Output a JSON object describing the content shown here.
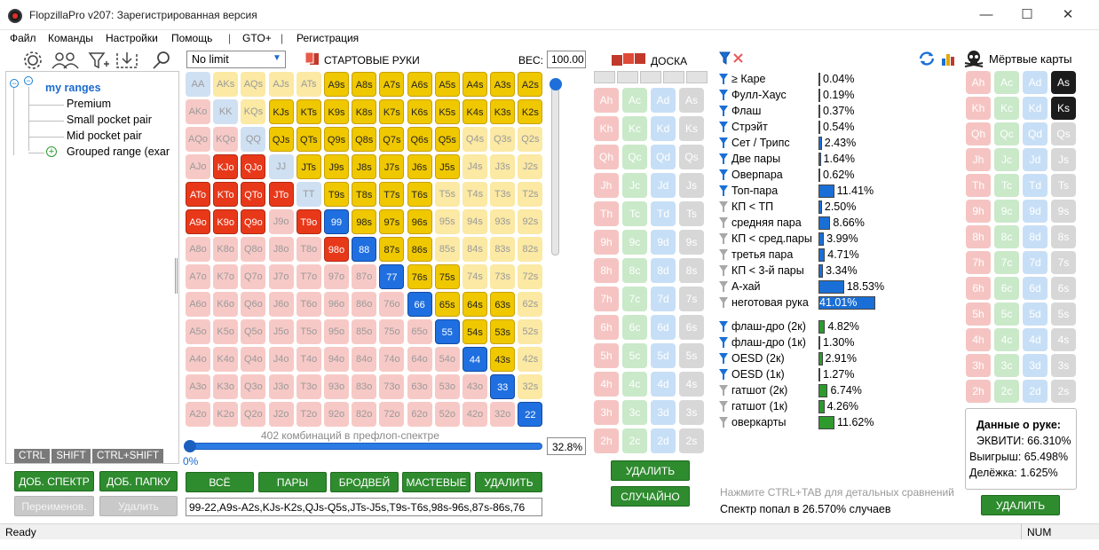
{
  "window": {
    "title": "FlopzillaPro v207: Зарегистрированная версия",
    "min": "—",
    "max": "☐",
    "close": "✕"
  },
  "menu": [
    "Файл",
    "Команды",
    "Настройки",
    "Помощь",
    "|",
    "GTO+",
    "|",
    "Регистрация"
  ],
  "tree": {
    "root": "my ranges",
    "items": [
      "Premium",
      "Small pocket pair",
      "Mid pocket pair",
      "Grouped range (exar"
    ]
  },
  "mods": [
    "CTRL",
    "SHIFT",
    "CTRL+SHIFT"
  ],
  "left_buttons": {
    "add_range": "ДОБ. СПЕКТР",
    "add_folder": "ДОБ. ПАПКУ",
    "rename": "Переименов.",
    "delete": "Удалить"
  },
  "game_select": "No limit",
  "start_hands_label": "СТАРТОВЫЕ РУКИ",
  "weight_label": "ВЕС:",
  "weight_value": "100.00",
  "combos_text": "402 комбинаций в префлоп-спектре",
  "slider_pct": "0%",
  "range_pct": "32.8%",
  "grid_buttons": [
    "ВСЁ",
    "ПАРЫ",
    "БРОДВЕЙ",
    "МАСТЕВЫЕ",
    "УДАЛИТЬ"
  ],
  "range_text": "99-22,A9s-A2s,KJs-K2s,QJs-Q5s,JTs-J5s,T9s-T6s,98s-96s,87s-86s,76",
  "grid": [
    [
      "AA",
      "AKs",
      "AQs",
      "AJs",
      "ATs",
      "A9s",
      "A8s",
      "A7s",
      "A6s",
      "A5s",
      "A4s",
      "A3s",
      "A2s"
    ],
    [
      "AKo",
      "KK",
      "KQs",
      "KJs",
      "KTs",
      "K9s",
      "K8s",
      "K7s",
      "K6s",
      "K5s",
      "K4s",
      "K3s",
      "K2s"
    ],
    [
      "AQo",
      "KQo",
      "QQ",
      "QJs",
      "QTs",
      "Q9s",
      "Q8s",
      "Q7s",
      "Q6s",
      "Q5s",
      "Q4s",
      "Q3s",
      "Q2s"
    ],
    [
      "AJo",
      "KJo",
      "QJo",
      "JJ",
      "JTs",
      "J9s",
      "J8s",
      "J7s",
      "J6s",
      "J5s",
      "J4s",
      "J3s",
      "J2s"
    ],
    [
      "ATo",
      "KTo",
      "QTo",
      "JTo",
      "TT",
      "T9s",
      "T8s",
      "T7s",
      "T6s",
      "T5s",
      "T4s",
      "T3s",
      "T2s"
    ],
    [
      "A9o",
      "K9o",
      "Q9o",
      "J9o",
      "T9o",
      "99",
      "98s",
      "97s",
      "96s",
      "95s",
      "94s",
      "93s",
      "92s"
    ],
    [
      "A8o",
      "K8o",
      "Q8o",
      "J8o",
      "T8o",
      "98o",
      "88",
      "87s",
      "86s",
      "85s",
      "84s",
      "83s",
      "82s"
    ],
    [
      "A7o",
      "K7o",
      "Q7o",
      "J7o",
      "T7o",
      "97o",
      "87o",
      "77",
      "76s",
      "75s",
      "74s",
      "73s",
      "72s"
    ],
    [
      "A6o",
      "K6o",
      "Q6o",
      "J6o",
      "T6o",
      "96o",
      "86o",
      "76o",
      "66",
      "65s",
      "64s",
      "63s",
      "62s"
    ],
    [
      "A5o",
      "K5o",
      "Q5o",
      "J5o",
      "T5o",
      "95o",
      "85o",
      "75o",
      "65o",
      "55",
      "54s",
      "53s",
      "52s"
    ],
    [
      "A4o",
      "K4o",
      "Q4o",
      "J4o",
      "T4o",
      "94o",
      "84o",
      "74o",
      "64o",
      "54o",
      "44",
      "43s",
      "42s"
    ],
    [
      "A3o",
      "K3o",
      "Q3o",
      "J3o",
      "T3o",
      "93o",
      "83o",
      "73o",
      "63o",
      "53o",
      "43o",
      "33",
      "32s"
    ],
    [
      "A2o",
      "K2o",
      "Q2o",
      "J2o",
      "T2o",
      "92o",
      "82o",
      "72o",
      "62o",
      "52o",
      "42o",
      "32o",
      "22"
    ]
  ],
  "selected": [
    "A9s",
    "A8s",
    "A7s",
    "A6s",
    "A5s",
    "A4s",
    "A3s",
    "A2s",
    "KJs",
    "KTs",
    "K9s",
    "K8s",
    "K7s",
    "K6s",
    "K5s",
    "K4s",
    "K3s",
    "K2s",
    "QJs",
    "QTs",
    "Q9s",
    "Q8s",
    "Q7s",
    "Q6s",
    "Q5s",
    "JTs",
    "J9s",
    "J8s",
    "J7s",
    "J6s",
    "J5s",
    "T9s",
    "T8s",
    "T7s",
    "T6s",
    "98s",
    "97s",
    "96s",
    "87s",
    "86s",
    "76s",
    "75s",
    "65s",
    "64s",
    "63s",
    "54s",
    "53s",
    "43s",
    "KJo",
    "QJo",
    "ATo",
    "KTo",
    "QTo",
    "JTo",
    "A9o",
    "K9o",
    "Q9o",
    "T9o",
    "98o",
    "99",
    "88",
    "77",
    "66",
    "55",
    "44",
    "33",
    "22"
  ],
  "board": {
    "label": "ДОСКА",
    "delete": "УДАЛИТЬ",
    "random": "СЛУЧАЙНО",
    "ranks": [
      "A",
      "K",
      "Q",
      "J",
      "T",
      "9",
      "8",
      "7",
      "6",
      "5",
      "4",
      "3",
      "2"
    ],
    "suits": [
      "h",
      "c",
      "d",
      "s"
    ]
  },
  "filters": {
    "groups": [
      [
        {
          "label": "≥ Каре",
          "value": "0.04%",
          "pct": 0.04,
          "on": true
        },
        {
          "label": "Фулл-Хаус",
          "value": "0.19%",
          "pct": 0.19,
          "on": true
        },
        {
          "label": "Флаш",
          "value": "0.37%",
          "pct": 0.37,
          "on": true
        },
        {
          "label": "Стрэйт",
          "value": "0.54%",
          "pct": 0.54,
          "on": true
        },
        {
          "label": "Сет / Трипс",
          "value": "2.43%",
          "pct": 2.43,
          "on": true
        },
        {
          "label": "Две пары",
          "value": "1.64%",
          "pct": 1.64,
          "on": true
        },
        {
          "label": "Оверпара",
          "value": "0.62%",
          "pct": 0.62,
          "on": true
        },
        {
          "label": "Топ-пара",
          "value": "11.41%",
          "pct": 11.41,
          "on": true
        },
        {
          "label": "КП < ТП",
          "value": "2.50%",
          "pct": 2.5,
          "on": false
        },
        {
          "label": "средняя пара",
          "value": "8.66%",
          "pct": 8.66,
          "on": false
        },
        {
          "label": "КП < сред.пары",
          "value": "3.99%",
          "pct": 3.99,
          "on": false
        },
        {
          "label": "третья пара",
          "value": "4.71%",
          "pct": 4.71,
          "on": false
        },
        {
          "label": "КП < 3-й пары",
          "value": "3.34%",
          "pct": 3.34,
          "on": false
        },
        {
          "label": "А-хай",
          "value": "18.53%",
          "pct": 18.53,
          "on": false
        },
        {
          "label": "неготовая рука",
          "value": "41.01%",
          "pct": 41.01,
          "on": false
        }
      ],
      [
        {
          "label": "флаш-дро (2к)",
          "value": "4.82%",
          "pct": 4.82,
          "on": true
        },
        {
          "label": "флаш-дро (1к)",
          "value": "1.30%",
          "pct": 1.3,
          "on": true
        },
        {
          "label": "OESD (2к)",
          "value": "2.91%",
          "pct": 2.91,
          "on": true
        },
        {
          "label": "OESD (1к)",
          "value": "1.27%",
          "pct": 1.27,
          "on": true
        },
        {
          "label": "гатшот (2к)",
          "value": "6.74%",
          "pct": 6.74,
          "on": false
        },
        {
          "label": "гатшот (1к)",
          "value": "4.26%",
          "pct": 4.26,
          "on": false
        },
        {
          "label": "оверкарты",
          "value": "11.62%",
          "pct": 11.62,
          "on": false
        }
      ]
    ],
    "colors": {
      "made": "#1a6fd6",
      "draw": "#2e9a2e"
    }
  },
  "hint_text": "Нажмите CTRL+TAB для детальных сравнений",
  "hit_text": "Спектр попал в 26.570% случаев",
  "dead": {
    "label": "Мёртвые карты",
    "selected": [
      "As",
      "Ks"
    ],
    "delete": "УДАЛИТЬ"
  },
  "hand_data": {
    "title": "Данные о руке:",
    "equity": "ЭКВИТИ: 66.310%",
    "win": "Выигрыш: 65.498%",
    "tie": "Делёжка: 1.625%"
  },
  "status": {
    "left": "Ready",
    "right": "NUM"
  }
}
